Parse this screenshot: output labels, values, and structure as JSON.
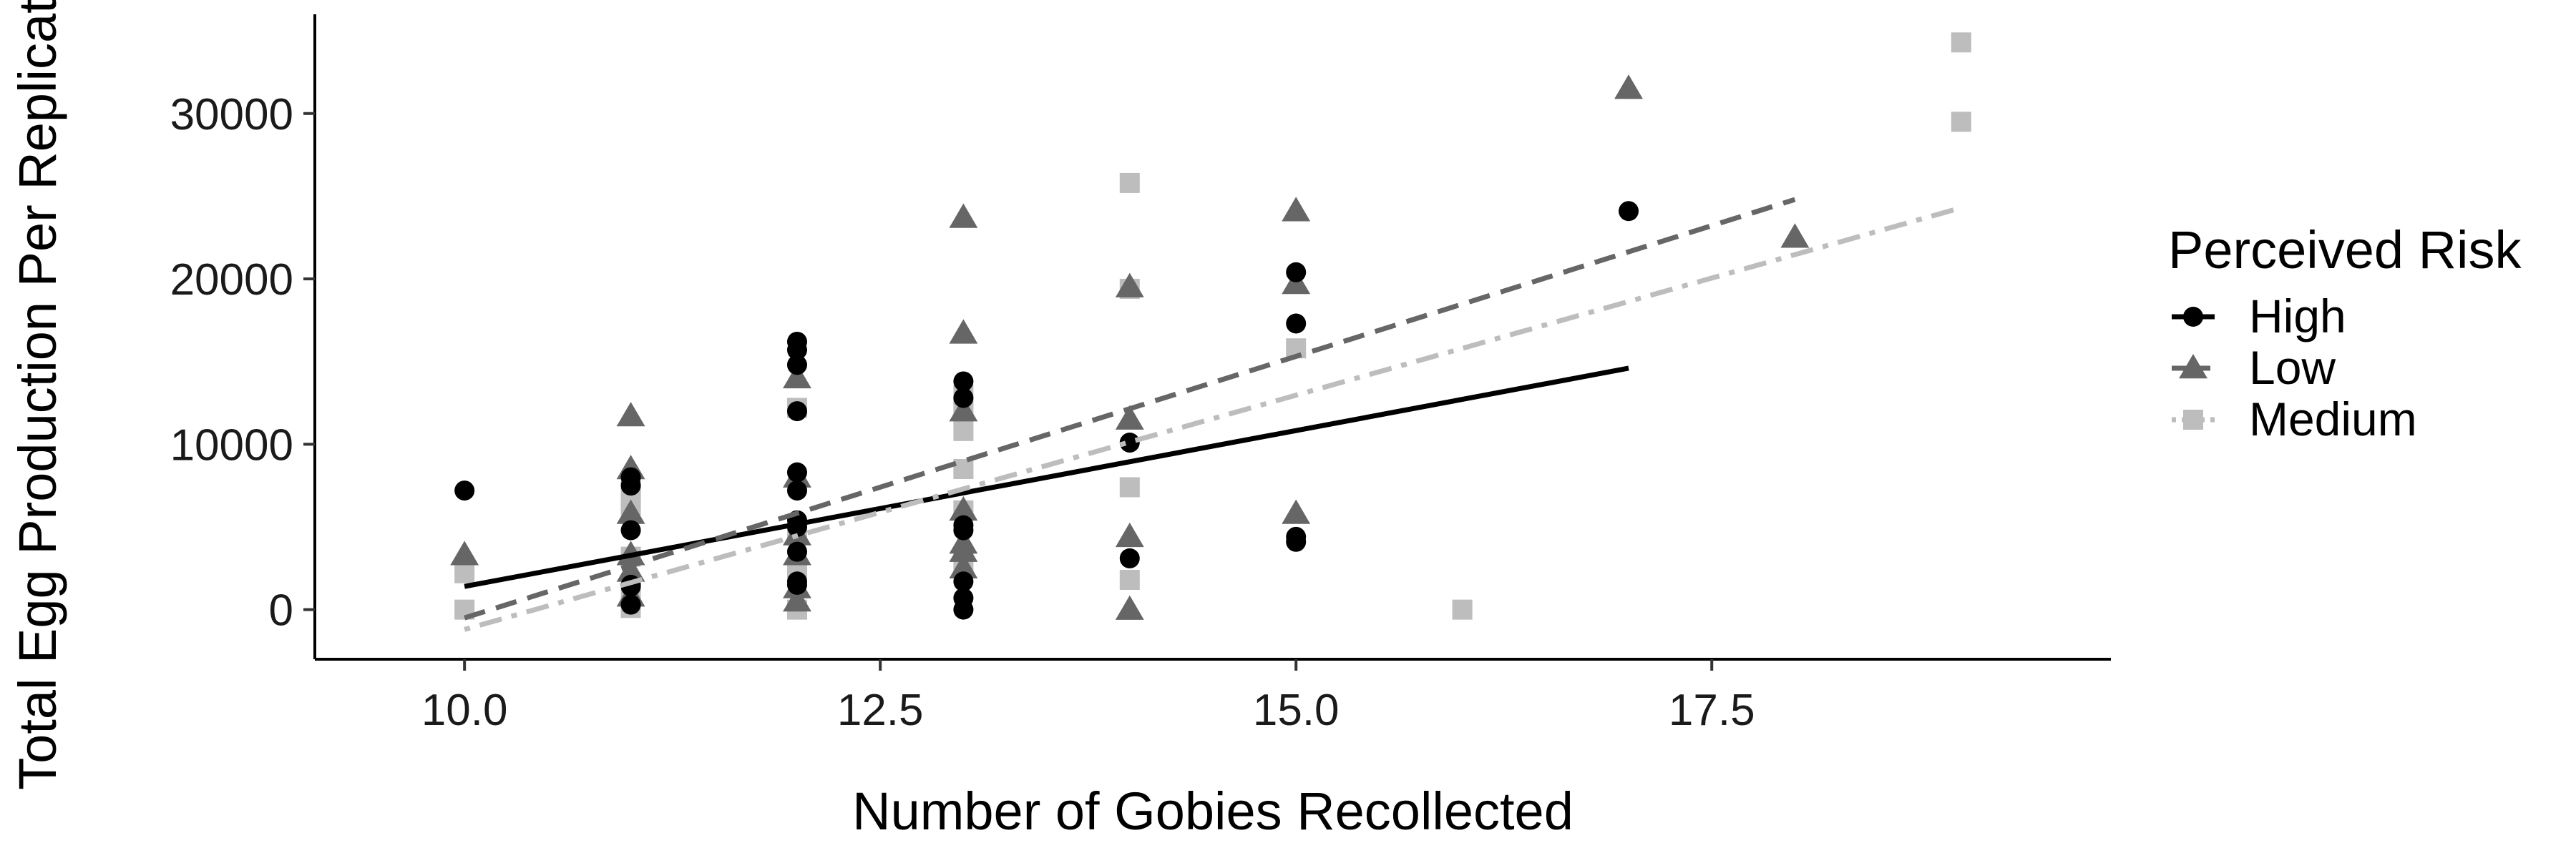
{
  "chart_data": {
    "type": "scatter",
    "xlabel": "Number of Gobies Recollected",
    "ylabel": "Total Egg Production Per Replicate",
    "xlim": [
      9.1,
      19.9
    ],
    "ylim": [
      -3000,
      36000
    ],
    "x_ticks": [
      10.0,
      12.5,
      15.0,
      17.5
    ],
    "x_tick_labels": [
      "10.0",
      "12.5",
      "15.0",
      "17.5"
    ],
    "y_ticks": [
      0,
      10000,
      20000,
      30000
    ],
    "y_tick_labels": [
      "0",
      "10000",
      "20000",
      "30000"
    ],
    "grid": false,
    "legend": {
      "title": "Perceived Risk",
      "placement": "right"
    },
    "series": [
      {
        "name": "High",
        "marker": "circle",
        "color": "#000000",
        "line_style": "solid",
        "points": [
          [
            10,
            7200
          ],
          [
            11,
            8000
          ],
          [
            11,
            7500
          ],
          [
            11,
            4800
          ],
          [
            11,
            1500
          ],
          [
            11,
            1400
          ],
          [
            11,
            300
          ],
          [
            12,
            16200
          ],
          [
            12,
            15700
          ],
          [
            12,
            14800
          ],
          [
            12,
            12000
          ],
          [
            12,
            8300
          ],
          [
            12,
            7200
          ],
          [
            12,
            5400
          ],
          [
            12,
            5000
          ],
          [
            12,
            3500
          ],
          [
            12,
            1700
          ],
          [
            12,
            1500
          ],
          [
            13,
            13800
          ],
          [
            13,
            12800
          ],
          [
            13,
            5100
          ],
          [
            13,
            4800
          ],
          [
            13,
            1700
          ],
          [
            13,
            700
          ],
          [
            13,
            0
          ],
          [
            14,
            10100
          ],
          [
            14,
            3100
          ],
          [
            15,
            20400
          ],
          [
            15,
            17300
          ],
          [
            15,
            4400
          ],
          [
            15,
            4100
          ],
          [
            17,
            24100
          ]
        ],
        "fit": [
          [
            10,
            1400
          ],
          [
            17,
            14600
          ]
        ]
      },
      {
        "name": "Low",
        "marker": "triangle",
        "color": "#666666",
        "line_style": "dashed",
        "points": [
          [
            10,
            3300
          ],
          [
            11,
            11700
          ],
          [
            11,
            8500
          ],
          [
            11,
            5800
          ],
          [
            11,
            3300
          ],
          [
            11,
            2300
          ],
          [
            11,
            800
          ],
          [
            12,
            14000
          ],
          [
            12,
            8000
          ],
          [
            12,
            4500
          ],
          [
            12,
            3300
          ],
          [
            12,
            1300
          ],
          [
            12,
            500
          ],
          [
            13,
            23700
          ],
          [
            13,
            16700
          ],
          [
            13,
            12000
          ],
          [
            13,
            6000
          ],
          [
            13,
            4000
          ],
          [
            13,
            3500
          ],
          [
            13,
            2500
          ],
          [
            14,
            19500
          ],
          [
            14,
            11500
          ],
          [
            14,
            4400
          ],
          [
            14,
            0
          ],
          [
            15,
            24100
          ],
          [
            15,
            19700
          ],
          [
            15,
            5800
          ],
          [
            17,
            31500
          ],
          [
            18,
            22500
          ]
        ],
        "fit": [
          [
            10,
            -500
          ],
          [
            18,
            24800
          ]
        ]
      },
      {
        "name": "Medium",
        "marker": "square",
        "color": "#bdbdbd",
        "line_style": "dotdash",
        "points": [
          [
            10,
            2200
          ],
          [
            10,
            0
          ],
          [
            11,
            7200
          ],
          [
            11,
            6600
          ],
          [
            11,
            6300
          ],
          [
            11,
            3200
          ],
          [
            11,
            700
          ],
          [
            11,
            100
          ],
          [
            12,
            12200
          ],
          [
            12,
            4500
          ],
          [
            12,
            2500
          ],
          [
            12,
            0
          ],
          [
            13,
            13000
          ],
          [
            13,
            12200
          ],
          [
            13,
            10800
          ],
          [
            13,
            8500
          ],
          [
            13,
            6000
          ],
          [
            13,
            2800
          ],
          [
            14,
            25800
          ],
          [
            14,
            19400
          ],
          [
            14,
            7400
          ],
          [
            14,
            1800
          ],
          [
            15,
            15800
          ],
          [
            16,
            0
          ],
          [
            19,
            34300
          ],
          [
            19,
            29500
          ]
        ],
        "fit": [
          [
            10,
            -1200
          ],
          [
            19,
            24300
          ]
        ]
      }
    ]
  },
  "colors": {
    "high": "#000000",
    "low": "#666666",
    "medium": "#bdbdbd",
    "axis": "#000000",
    "background": "#ffffff"
  }
}
